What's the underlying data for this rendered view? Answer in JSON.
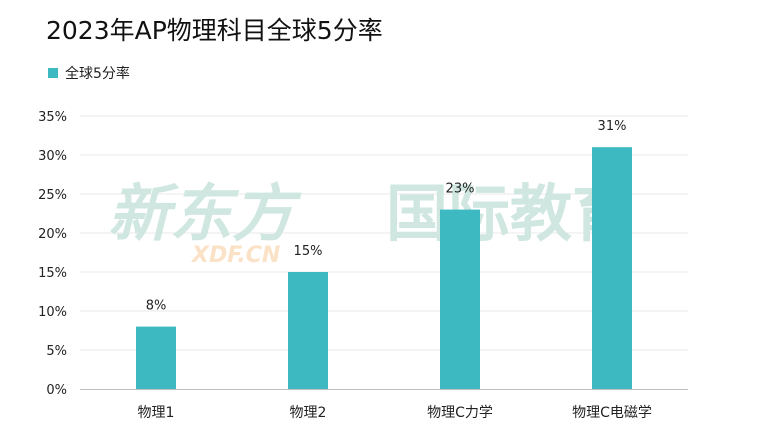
{
  "title": "2023年AP物理科目全球5分率",
  "legend": {
    "label": "全球5分率"
  },
  "watermark": {
    "brand": "新东方",
    "sub": "XDF.CN",
    "text2": "国际教育"
  },
  "colors": {
    "bar": "#3dbac1",
    "grid": "#e8e8e8",
    "axis": "#bfbfbf",
    "watermark_green": "#cfe7e0",
    "watermark_orange": "#fbe2c6"
  },
  "chart_data": {
    "type": "bar",
    "title": "2023年AP物理科目全球5分率",
    "categories": [
      "物理1",
      "物理2",
      "物理C力学",
      "物理C电磁学"
    ],
    "series": [
      {
        "name": "全球5分率",
        "values": [
          8,
          15,
          23,
          31
        ]
      }
    ],
    "data_labels": [
      "8%",
      "15%",
      "23%",
      "31%"
    ],
    "y_ticks": [
      "0%",
      "5%",
      "10%",
      "15%",
      "20%",
      "25%",
      "30%",
      "35%"
    ],
    "ylim": [
      0,
      35
    ],
    "xlabel": "",
    "ylabel": "",
    "grid": true,
    "legend_position": "top-left"
  }
}
